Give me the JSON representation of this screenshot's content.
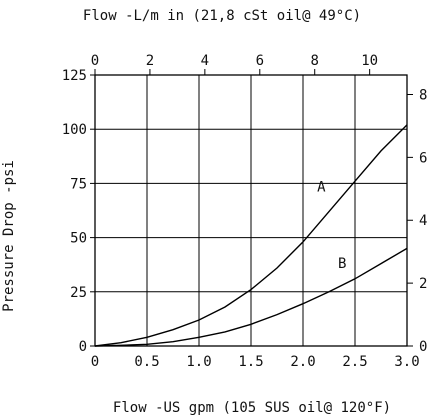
{
  "chart_data": {
    "type": "line",
    "title_top": "Flow -L/m in (21,8 cSt oil@ 49°C)",
    "xlabel": "Flow -US gpm (105 SUS oil@ 120°F)",
    "ylabel": "Pressure Drop -psi",
    "x_bottom": {
      "ticks": [
        0,
        0.5,
        1.0,
        1.5,
        2.0,
        2.5,
        3.0
      ],
      "tick_labels": [
        "0",
        "0.5",
        "1.0",
        "1.5",
        "2.0",
        "2.5",
        "3.0"
      ],
      "range": [
        0,
        3.0
      ]
    },
    "x_top": {
      "ticks": [
        0,
        2,
        4,
        6,
        8,
        10
      ],
      "tick_labels": [
        "0",
        "2",
        "4",
        "6",
        "8",
        "10"
      ],
      "range": [
        0,
        11.36
      ]
    },
    "y_left": {
      "ticks": [
        0,
        25,
        50,
        75,
        100,
        125
      ],
      "tick_labels": [
        "0",
        "25",
        "50",
        "75",
        "100",
        "125"
      ],
      "range": [
        0,
        125
      ]
    },
    "y_right": {
      "ticks": [
        0,
        2,
        4,
        6,
        8
      ],
      "tick_labels": [
        "0",
        "2",
        "4",
        "6",
        "8"
      ],
      "range": [
        0,
        8.62
      ]
    },
    "grid": true,
    "series": [
      {
        "name": "A",
        "x": [
          0,
          0.25,
          0.5,
          0.75,
          1.0,
          1.25,
          1.5,
          1.75,
          2.0,
          2.25,
          2.5,
          2.75,
          3.0
        ],
        "y": [
          0,
          1.5,
          4,
          7.5,
          12,
          18,
          26,
          36,
          48,
          62,
          76,
          90,
          102
        ]
      },
      {
        "name": "B",
        "x": [
          0,
          0.25,
          0.5,
          0.75,
          1.0,
          1.25,
          1.5,
          1.75,
          2.0,
          2.25,
          2.5,
          2.75,
          3.0
        ],
        "y": [
          0,
          0.3,
          0.8,
          2,
          4,
          6.5,
          10,
          14.5,
          19.5,
          25,
          31,
          38,
          45
        ]
      }
    ]
  }
}
